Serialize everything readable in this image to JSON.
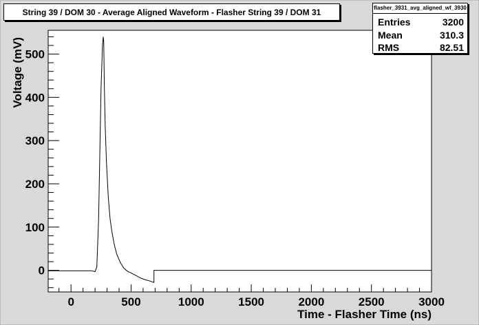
{
  "title": "String 39 / DOM 30 - Average Aligned Waveform - Flasher String 39 / DOM 31",
  "stats": {
    "name": "flasher_3931_avg_aligned_wf_3930",
    "rows": [
      {
        "label": "Entries",
        "value": "3200"
      },
      {
        "label": "Mean",
        "value": "310.3"
      },
      {
        "label": "RMS",
        "value": "82.51"
      }
    ]
  },
  "chart_data": {
    "type": "line",
    "xlabel": "Time - Flasher Time (ns)",
    "ylabel": "Voltage (mV)",
    "xlim": [
      -190,
      3000
    ],
    "ylim": [
      -50,
      555
    ],
    "xticks": [
      0,
      500,
      1000,
      1500,
      2000,
      2500,
      3000
    ],
    "yticks": [
      0,
      100,
      200,
      300,
      400,
      500
    ],
    "x": [
      -190,
      170,
      200,
      215,
      230,
      250,
      262,
      268,
      272,
      278,
      285,
      295,
      310,
      325,
      340,
      360,
      380,
      410,
      440,
      470,
      500,
      540,
      580,
      620,
      660,
      690,
      690,
      3000
    ],
    "y": [
      -1,
      -1,
      -3,
      8,
      120,
      420,
      520,
      540,
      530,
      420,
      330,
      250,
      170,
      120,
      90,
      60,
      38,
      18,
      5,
      -2,
      -6,
      -12,
      -18,
      -22,
      -25,
      -28,
      0,
      0
    ],
    "line_color": "#000000",
    "grid": false
  }
}
